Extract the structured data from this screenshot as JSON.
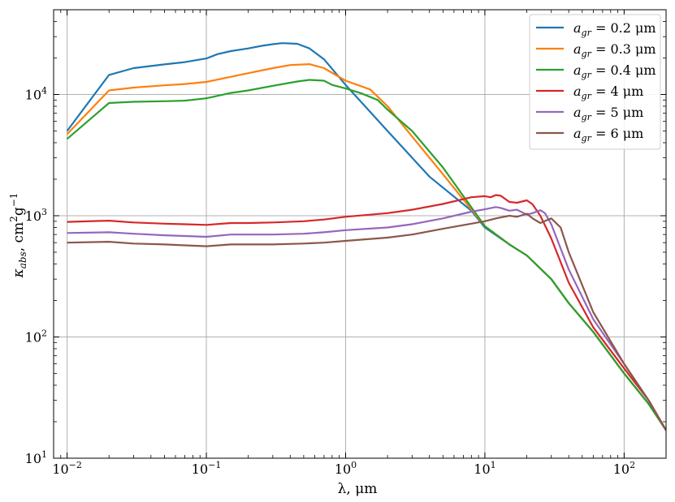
{
  "chart_data": {
    "type": "line",
    "title": "",
    "xlabel": "λ, μm",
    "ylabel": "κ_abs, cm² g⁻¹",
    "xscale": "log",
    "yscale": "log",
    "xlim": [
      0.008,
      200
    ],
    "ylim": [
      10,
      50000
    ],
    "grid": true,
    "legend_position": "top-right",
    "x_ticks": [
      {
        "value": 0.01,
        "base": "10",
        "exp": "−2"
      },
      {
        "value": 0.1,
        "base": "10",
        "exp": "−1"
      },
      {
        "value": 1,
        "base": "10",
        "exp": "0"
      },
      {
        "value": 10,
        "base": "10",
        "exp": "1"
      },
      {
        "value": 100,
        "base": "10",
        "exp": "2"
      }
    ],
    "y_ticks": [
      {
        "value": 10,
        "base": "10",
        "exp": "1"
      },
      {
        "value": 100,
        "base": "10",
        "exp": "2"
      },
      {
        "value": 1000,
        "base": "10",
        "exp": "3"
      },
      {
        "value": 10000,
        "base": "10",
        "exp": "4"
      }
    ],
    "series": [
      {
        "name": "a_gr = 0.2 μm",
        "sub": "gr",
        "value_text": "= 0.2 μm",
        "color": "#1f77b4",
        "points": [
          [
            0.01,
            5000
          ],
          [
            0.02,
            14500
          ],
          [
            0.03,
            16500
          ],
          [
            0.05,
            17700
          ],
          [
            0.07,
            18500
          ],
          [
            0.1,
            19800
          ],
          [
            0.12,
            21500
          ],
          [
            0.15,
            22800
          ],
          [
            0.2,
            24000
          ],
          [
            0.25,
            25200
          ],
          [
            0.3,
            26000
          ],
          [
            0.35,
            26500
          ],
          [
            0.45,
            26200
          ],
          [
            0.55,
            24000
          ],
          [
            0.7,
            19500
          ],
          [
            1.0,
            12000
          ],
          [
            2.0,
            5000
          ],
          [
            4.0,
            2100
          ],
          [
            8.0,
            1100
          ],
          [
            10,
            800
          ],
          [
            15,
            580
          ],
          [
            20,
            470
          ],
          [
            30,
            300
          ],
          [
            40,
            190
          ],
          [
            60,
            110
          ],
          [
            100,
            50
          ],
          [
            150,
            28
          ],
          [
            200,
            17
          ]
        ]
      },
      {
        "name": "a_gr = 0.3 μm",
        "sub": "gr",
        "value_text": "= 0.3 μm",
        "color": "#ff7f0e",
        "points": [
          [
            0.01,
            4700
          ],
          [
            0.02,
            10800
          ],
          [
            0.03,
            11400
          ],
          [
            0.05,
            11900
          ],
          [
            0.07,
            12200
          ],
          [
            0.1,
            12700
          ],
          [
            0.15,
            14000
          ],
          [
            0.2,
            15000
          ],
          [
            0.3,
            16500
          ],
          [
            0.4,
            17500
          ],
          [
            0.55,
            17800
          ],
          [
            0.7,
            16500
          ],
          [
            1.0,
            13000
          ],
          [
            1.5,
            11000
          ],
          [
            2.0,
            8000
          ],
          [
            3.0,
            4500
          ],
          [
            5.0,
            2200
          ],
          [
            10,
            820
          ],
          [
            15,
            580
          ],
          [
            20,
            470
          ],
          [
            30,
            300
          ],
          [
            40,
            190
          ],
          [
            60,
            110
          ],
          [
            100,
            50
          ],
          [
            150,
            28
          ],
          [
            200,
            17
          ]
        ]
      },
      {
        "name": "a_gr = 0.4 μm",
        "sub": "gr",
        "value_text": "= 0.4 μm",
        "color": "#2ca02c",
        "points": [
          [
            0.01,
            4300
          ],
          [
            0.02,
            8500
          ],
          [
            0.03,
            8700
          ],
          [
            0.05,
            8800
          ],
          [
            0.07,
            8900
          ],
          [
            0.1,
            9300
          ],
          [
            0.15,
            10300
          ],
          [
            0.2,
            10800
          ],
          [
            0.3,
            11800
          ],
          [
            0.45,
            12800
          ],
          [
            0.55,
            13200
          ],
          [
            0.7,
            13000
          ],
          [
            0.8,
            12000
          ],
          [
            1.0,
            11200
          ],
          [
            1.3,
            10200
          ],
          [
            1.7,
            9000
          ],
          [
            2.0,
            7500
          ],
          [
            3.0,
            5000
          ],
          [
            5.0,
            2500
          ],
          [
            10,
            820
          ],
          [
            15,
            580
          ],
          [
            20,
            470
          ],
          [
            30,
            300
          ],
          [
            40,
            190
          ],
          [
            60,
            110
          ],
          [
            100,
            50
          ],
          [
            150,
            28
          ],
          [
            200,
            17
          ]
        ]
      },
      {
        "name": "a_gr = 4 μm",
        "sub": "gr",
        "value_text": "= 4 μm",
        "color": "#d62728",
        "points": [
          [
            0.01,
            890
          ],
          [
            0.02,
            910
          ],
          [
            0.03,
            880
          ],
          [
            0.05,
            860
          ],
          [
            0.07,
            850
          ],
          [
            0.1,
            840
          ],
          [
            0.15,
            870
          ],
          [
            0.2,
            870
          ],
          [
            0.3,
            880
          ],
          [
            0.5,
            900
          ],
          [
            0.7,
            930
          ],
          [
            1.0,
            980
          ],
          [
            2.0,
            1050
          ],
          [
            3.0,
            1120
          ],
          [
            5.0,
            1250
          ],
          [
            8.0,
            1420
          ],
          [
            10,
            1450
          ],
          [
            11,
            1420
          ],
          [
            12,
            1480
          ],
          [
            13,
            1460
          ],
          [
            15,
            1300
          ],
          [
            17,
            1280
          ],
          [
            20,
            1340
          ],
          [
            22,
            1240
          ],
          [
            25,
            1000
          ],
          [
            30,
            650
          ],
          [
            40,
            280
          ],
          [
            60,
            120
          ],
          [
            100,
            55
          ],
          [
            150,
            30
          ],
          [
            200,
            17
          ]
        ]
      },
      {
        "name": "a_gr = 5 μm",
        "sub": "gr",
        "value_text": "= 5 μm",
        "color": "#9467bd",
        "points": [
          [
            0.01,
            720
          ],
          [
            0.02,
            730
          ],
          [
            0.03,
            710
          ],
          [
            0.05,
            690
          ],
          [
            0.07,
            680
          ],
          [
            0.1,
            670
          ],
          [
            0.15,
            700
          ],
          [
            0.2,
            700
          ],
          [
            0.3,
            700
          ],
          [
            0.5,
            710
          ],
          [
            0.7,
            730
          ],
          [
            1.0,
            760
          ],
          [
            2.0,
            800
          ],
          [
            3.0,
            850
          ],
          [
            5.0,
            950
          ],
          [
            8.0,
            1080
          ],
          [
            10,
            1130
          ],
          [
            12,
            1180
          ],
          [
            13,
            1160
          ],
          [
            15,
            1100
          ],
          [
            17,
            1120
          ],
          [
            20,
            1020
          ],
          [
            22,
            1050
          ],
          [
            25,
            1110
          ],
          [
            27,
            1050
          ],
          [
            30,
            850
          ],
          [
            40,
            360
          ],
          [
            60,
            140
          ],
          [
            100,
            60
          ],
          [
            150,
            30
          ],
          [
            200,
            17
          ]
        ]
      },
      {
        "name": "a_gr = 6 μm",
        "sub": "gr",
        "value_text": "= 6 μm",
        "color": "#8c564b",
        "points": [
          [
            0.01,
            600
          ],
          [
            0.02,
            610
          ],
          [
            0.03,
            590
          ],
          [
            0.05,
            580
          ],
          [
            0.07,
            570
          ],
          [
            0.1,
            560
          ],
          [
            0.15,
            580
          ],
          [
            0.2,
            580
          ],
          [
            0.3,
            580
          ],
          [
            0.5,
            590
          ],
          [
            0.7,
            600
          ],
          [
            1.0,
            620
          ],
          [
            2.0,
            660
          ],
          [
            3.0,
            700
          ],
          [
            5.0,
            780
          ],
          [
            8.0,
            860
          ],
          [
            10,
            900
          ],
          [
            12,
            950
          ],
          [
            15,
            1000
          ],
          [
            17,
            980
          ],
          [
            20,
            1040
          ],
          [
            22,
            950
          ],
          [
            25,
            870
          ],
          [
            28,
            920
          ],
          [
            30,
            950
          ],
          [
            35,
            800
          ],
          [
            40,
            500
          ],
          [
            60,
            160
          ],
          [
            100,
            60
          ],
          [
            150,
            30
          ],
          [
            200,
            17
          ]
        ]
      }
    ]
  }
}
